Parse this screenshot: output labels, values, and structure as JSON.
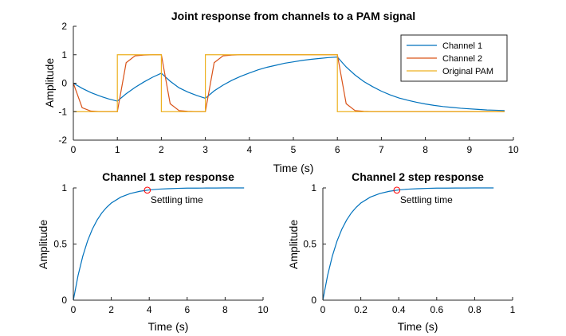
{
  "chart_data": [
    {
      "type": "line",
      "title": "Joint response from channels to a PAM signal",
      "xlabel": "Time (s)",
      "ylabel": "Amplitude",
      "xlim": [
        0,
        10
      ],
      "ylim": [
        -2,
        2
      ],
      "xticks": [
        "0",
        "1",
        "2",
        "3",
        "4",
        "5",
        "6",
        "7",
        "8",
        "9",
        "10"
      ],
      "yticks": [
        "-2",
        "-1",
        "0",
        "1",
        "2"
      ],
      "grid": false,
      "legend": "top-right",
      "series": [
        {
          "name": "Channel 1",
          "color": "#0072BD",
          "x": [
            0,
            0.2,
            0.4,
            0.6,
            0.8,
            1.0,
            1.2,
            1.4,
            1.6,
            1.8,
            2.0,
            2.2,
            2.4,
            2.6,
            2.8,
            3.0,
            3.2,
            3.4,
            3.6,
            3.8,
            4.0,
            4.2,
            4.4,
            4.6,
            4.8,
            5.0,
            5.2,
            5.4,
            5.6,
            5.8,
            6.0,
            6.2,
            6.4,
            6.6,
            6.8,
            7.0,
            7.2,
            7.4,
            7.6,
            7.8,
            8.0,
            8.2,
            8.4,
            8.6,
            8.8,
            9.0,
            9.2,
            9.4,
            9.6,
            9.8
          ],
          "y": [
            0,
            -0.18,
            -0.33,
            -0.45,
            -0.55,
            -0.63,
            -0.37,
            -0.15,
            0.04,
            0.21,
            0.35,
            0.07,
            -0.16,
            -0.31,
            -0.43,
            -0.53,
            -0.27,
            -0.07,
            0.1,
            0.24,
            0.36,
            0.47,
            0.56,
            0.63,
            0.7,
            0.75,
            0.8,
            0.84,
            0.87,
            0.9,
            0.92,
            0.57,
            0.29,
            0.06,
            -0.12,
            -0.28,
            -0.41,
            -0.52,
            -0.6,
            -0.67,
            -0.73,
            -0.78,
            -0.82,
            -0.85,
            -0.88,
            -0.9,
            -0.92,
            -0.94,
            -0.95,
            -0.96
          ]
        },
        {
          "name": "Channel 2",
          "color": "#D95319",
          "x": [
            0,
            0.2,
            0.4,
            0.6,
            0.8,
            1.0,
            1.2,
            1.4,
            1.6,
            1.8,
            2.0,
            2.2,
            2.4,
            2.6,
            2.8,
            3.0,
            3.2,
            3.4,
            3.6,
            3.8,
            4.0,
            4.5,
            5.0,
            5.5,
            6.0,
            6.2,
            6.4,
            6.6,
            6.8,
            7.0,
            8.0,
            9.0,
            9.8
          ],
          "y": [
            0,
            -0.86,
            -0.98,
            -1,
            -1,
            -1,
            0.72,
            0.96,
            0.99,
            1,
            1,
            -0.72,
            -0.96,
            -0.99,
            -1,
            -1,
            0.72,
            0.96,
            0.99,
            1,
            1,
            1,
            1,
            1,
            1,
            -0.72,
            -0.96,
            -0.99,
            -1,
            -1,
            -1,
            -1,
            -1
          ]
        },
        {
          "name": "Original PAM",
          "color": "#EDB120",
          "x": [
            0,
            1,
            1,
            2,
            2,
            3,
            3,
            6,
            6,
            9.8
          ],
          "y": [
            -1,
            -1,
            1,
            1,
            -1,
            -1,
            1,
            1,
            -1,
            -1
          ]
        }
      ]
    },
    {
      "type": "line",
      "title": "Channel 1 step response",
      "xlabel": "Time (s)",
      "ylabel": "Amplitude",
      "xlim": [
        0,
        10
      ],
      "ylim": [
        0,
        1
      ],
      "xticks": [
        "0",
        "2",
        "4",
        "6",
        "8",
        "10"
      ],
      "yticks": [
        "0",
        "0.5",
        "1"
      ],
      "grid": false,
      "series": [
        {
          "color": "#0072BD",
          "x": [
            0,
            0.25,
            0.5,
            0.75,
            1,
            1.25,
            1.5,
            1.75,
            2,
            2.5,
            3,
            3.5,
            4,
            4.5,
            5,
            5.5,
            6,
            6.5,
            7,
            7.5,
            8,
            8.5,
            9
          ],
          "y": [
            0,
            0.221,
            0.393,
            0.528,
            0.632,
            0.713,
            0.777,
            0.826,
            0.865,
            0.918,
            0.95,
            0.97,
            0.982,
            0.989,
            0.993,
            0.996,
            0.998,
            0.998,
            0.999,
            0.999,
            1.0,
            1.0,
            1.0
          ]
        }
      ],
      "annotation": {
        "text": "Settling time",
        "x": 3.9,
        "y": 0.98,
        "marker_color": "#FF0000"
      }
    },
    {
      "type": "line",
      "title": "Channel 2 step response",
      "xlabel": "Time (s)",
      "ylabel": "Amplitude",
      "xlim": [
        0,
        1
      ],
      "ylim": [
        0,
        1
      ],
      "xticks": [
        "0",
        "0.2",
        "0.4",
        "0.6",
        "0.8",
        "1"
      ],
      "yticks": [
        "0",
        "0.5",
        "1"
      ],
      "grid": false,
      "series": [
        {
          "color": "#0072BD",
          "x": [
            0,
            0.025,
            0.05,
            0.075,
            0.1,
            0.125,
            0.15,
            0.175,
            0.2,
            0.25,
            0.3,
            0.35,
            0.4,
            0.45,
            0.5,
            0.55,
            0.6,
            0.65,
            0.7,
            0.75,
            0.8,
            0.85,
            0.9
          ],
          "y": [
            0,
            0.221,
            0.393,
            0.528,
            0.632,
            0.713,
            0.777,
            0.826,
            0.865,
            0.918,
            0.95,
            0.97,
            0.982,
            0.989,
            0.993,
            0.996,
            0.998,
            0.998,
            0.999,
            0.999,
            1.0,
            1.0,
            1.0
          ]
        }
      ],
      "annotation": {
        "text": "Settling time",
        "x": 0.39,
        "y": 0.98,
        "marker_color": "#FF0000"
      }
    }
  ]
}
